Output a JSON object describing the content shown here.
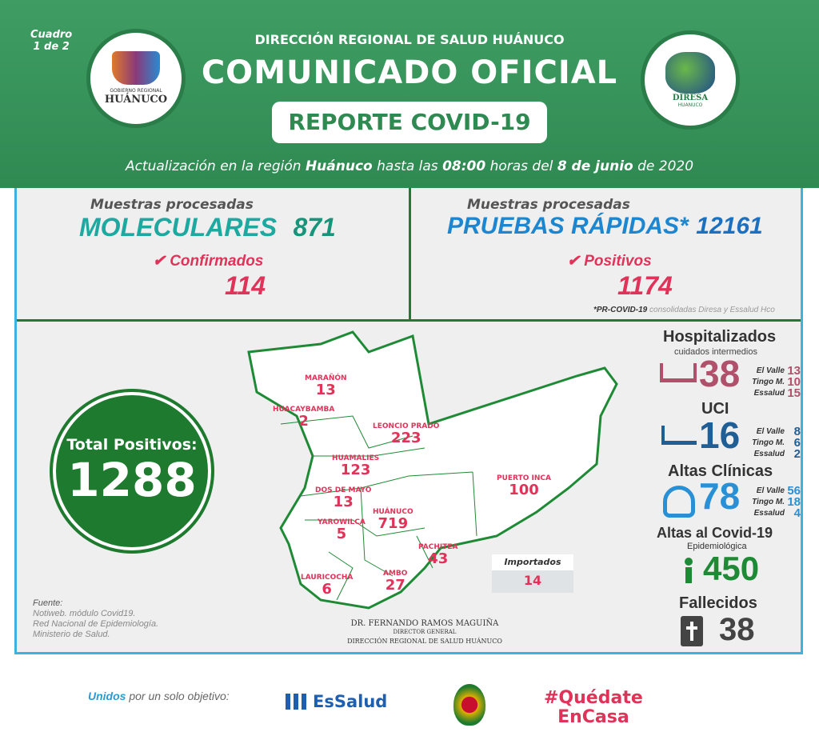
{
  "header": {
    "cuadro": "Cuadro",
    "cuadro_page": "1 de 2",
    "org": "DIRECCIÓN REGIONAL DE SALUD HUÁNUCO",
    "title": "COMUNICADO OFICIAL",
    "badge": "REPORTE COVID-19",
    "update_prefix": "Actualización en la región ",
    "update_region": "Huánuco",
    "update_mid": " hasta las ",
    "update_time": "08:00",
    "update_mid2": " horas del ",
    "update_date": "8 de junio",
    "update_suffix": " de 2020",
    "logo_left": {
      "line1": "GOBIERNO REGIONAL",
      "line2": "HUÁNUCO"
    },
    "logo_right": {
      "line1": "DIRESA",
      "line2": "HUANUCO"
    }
  },
  "molecular": {
    "label": "Muestras procesadas",
    "type": "MOLECULARES",
    "count": "871",
    "result_label": "Confirmados",
    "result": "114"
  },
  "rapid": {
    "label": "Muestras procesadas",
    "type": "PRUEBAS RÁPIDAS*",
    "count": "12161",
    "result_label": "Positivos",
    "result": "1174",
    "note_bold": "*PR-COVID-19",
    "note": " consolidadas Diresa y Essalud Hco"
  },
  "total": {
    "label": "Total Positivos:",
    "value": "1288"
  },
  "provinces": [
    {
      "name": "MARAÑÓN",
      "value": "13"
    },
    {
      "name": "HUACAYBAMBA",
      "value": "2"
    },
    {
      "name": "LEONCIO PRADO",
      "value": "223"
    },
    {
      "name": "HUAMALIES",
      "value": "123"
    },
    {
      "name": "DOS DE MAYO",
      "value": "13"
    },
    {
      "name": "HUÁNUCO",
      "value": "719"
    },
    {
      "name": "YAROWILCA",
      "value": "5"
    },
    {
      "name": "PUERTO INCA",
      "value": "100"
    },
    {
      "name": "PACHITEA",
      "value": "43"
    },
    {
      "name": "LAURICOCHA",
      "value": "6"
    },
    {
      "name": "AMBO",
      "value": "27"
    }
  ],
  "imported": {
    "label": "Importados",
    "value": "14"
  },
  "source": {
    "title": "Fuente:",
    "lines": [
      "Notiweb. módulo Covid19.",
      "Red Nacional de Epidemiología.",
      "Ministerio de Salud."
    ]
  },
  "signature": {
    "name": "DR. FERNANDO RAMOS MAGUIÑA",
    "role": "DIRECTOR GENERAL",
    "org": "DIRECCIÓN REGIONAL DE SALUD HUÁNUCO"
  },
  "hospitalized": {
    "title": "Hospitalizados",
    "subtitle": "cuidados intermedios",
    "total": "38",
    "color": "#b0506a",
    "rows": [
      {
        "label": "El Valle",
        "value": "13"
      },
      {
        "label": "Tingo M.",
        "value": "10"
      },
      {
        "label": "Essalud",
        "value": "15"
      }
    ]
  },
  "uci": {
    "title": "UCI",
    "total": "16",
    "color": "#1f5f96",
    "rows": [
      {
        "label": "El Valle",
        "value": "8"
      },
      {
        "label": "Tingo M.",
        "value": "6"
      },
      {
        "label": "Essalud",
        "value": "2"
      }
    ]
  },
  "altas": {
    "title": "Altas Clínicas",
    "total": "78",
    "color": "#2a90d6",
    "rows": [
      {
        "label": "El Valle",
        "value": "56"
      },
      {
        "label": "Tingo M.",
        "value": "18"
      },
      {
        "label": "Essalud",
        "value": "4"
      }
    ]
  },
  "altas_covid": {
    "title": "Altas al Covid-19",
    "subtitle": "Epidemiológica",
    "total": "450",
    "color": "#1e8a35"
  },
  "deaths": {
    "title": "Fallecidos",
    "total": "38",
    "color": "#444444"
  },
  "footer": {
    "unidos": "Unidos",
    "slogan": " por un solo objetivo:",
    "essalud": "EsSalud",
    "hashtag1": "#Quédate",
    "hashtag2": "EnCasa"
  }
}
